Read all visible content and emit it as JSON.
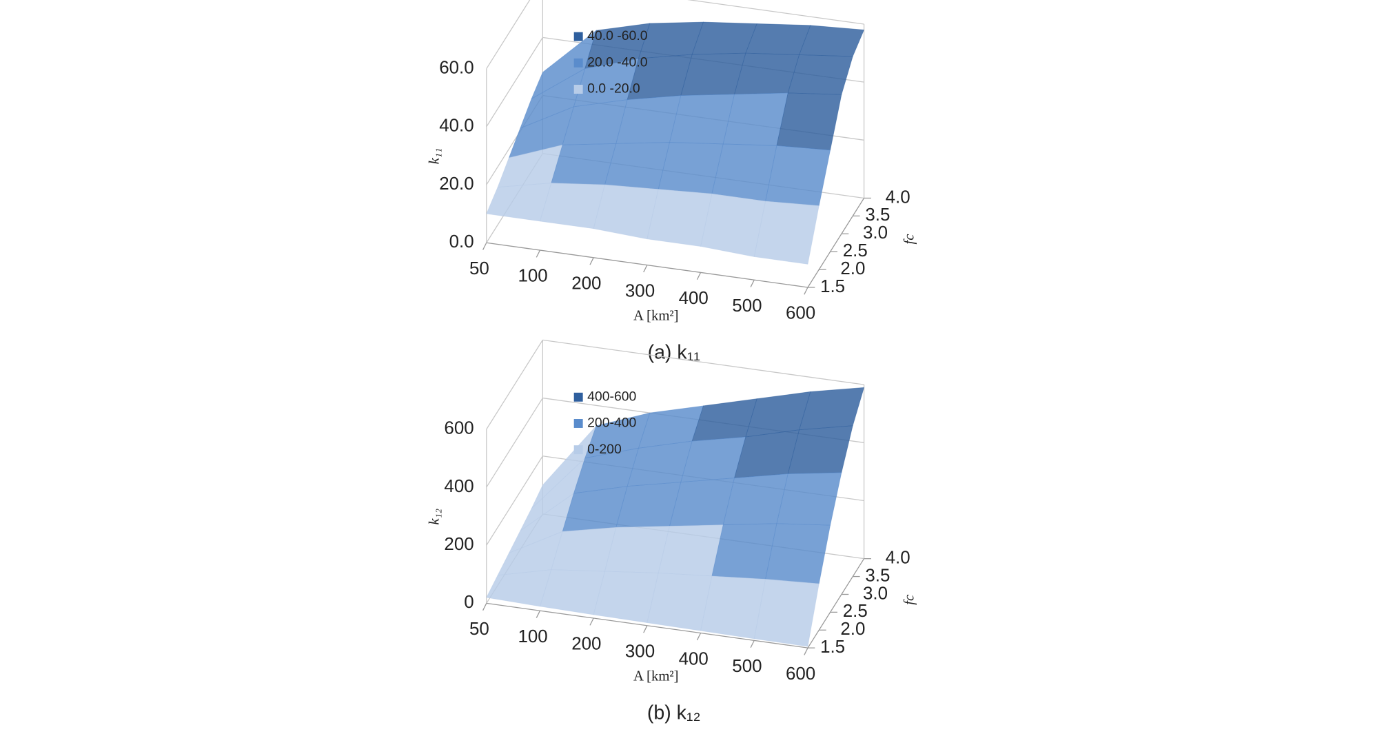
{
  "chart_data": [
    {
      "type": "surface",
      "caption": "(a) k₁₁",
      "zlabel": "k₁₁",
      "xlabel": "A [km²]",
      "ylabel": "fc",
      "categories": [
        "50",
        "100",
        "200",
        "300",
        "400",
        "500",
        "600"
      ],
      "depth_categories": [
        "1.5",
        "2.0",
        "2.5",
        "3.0",
        "3.5",
        "4.0"
      ],
      "values": [
        [
          10,
          10,
          10,
          9,
          9,
          8,
          8
        ],
        [
          13,
          17,
          19,
          20,
          21,
          21,
          22
        ],
        [
          17,
          24,
          27,
          30,
          32,
          34,
          35
        ],
        [
          21,
          31,
          36,
          40,
          43,
          46,
          48
        ],
        [
          25,
          38,
          44,
          48,
          51,
          53,
          55
        ],
        [
          28,
          45,
          50,
          53,
          55,
          57,
          58
        ]
      ],
      "zlim": [
        0,
        60
      ],
      "zticks": [
        {
          "value": 0,
          "label": "0.0"
        },
        {
          "value": 20,
          "label": "20.0"
        },
        {
          "value": 40,
          "label": "40.0"
        },
        {
          "value": 60,
          "label": "60.0"
        }
      ],
      "bands": [
        {
          "name": "40.0 -60.0",
          "from": 40,
          "to": 60,
          "color": "#2f5f9e"
        },
        {
          "name": "20.0 -40.0",
          "from": 20,
          "to": 40,
          "color": "#5a8ccc"
        },
        {
          "name": "0.0 -20.0",
          "from": 0,
          "to": 20,
          "color": "#b7cce8"
        }
      ]
    },
    {
      "type": "surface",
      "caption": "(b) k₁₂",
      "zlabel": "k₁₂",
      "xlabel": "A [km²]",
      "ylabel": "fc",
      "categories": [
        "50",
        "100",
        "200",
        "300",
        "400",
        "500",
        "600"
      ],
      "depth_categories": [
        "1.5",
        "2.0",
        "2.5",
        "3.0",
        "3.5",
        "4.0"
      ],
      "values": [
        [
          20,
          15,
          12,
          10,
          8,
          6,
          5
        ],
        [
          35,
          80,
          100,
          120,
          135,
          150,
          160
        ],
        [
          50,
          150,
          190,
          220,
          250,
          280,
          300
        ],
        [
          65,
          220,
          270,
          310,
          350,
          390,
          420
        ],
        [
          80,
          280,
          340,
          390,
          430,
          480,
          520
        ],
        [
          100,
          330,
          400,
          450,
          500,
          550,
          590
        ]
      ],
      "zlim": [
        0,
        600
      ],
      "zticks": [
        0,
        200,
        400,
        600
      ],
      "bands": [
        {
          "name": "400-600",
          "from": 400,
          "to": 600,
          "color": "#2f5f9e"
        },
        {
          "name": "200-400",
          "from": 200,
          "to": 400,
          "color": "#5a8ccc"
        },
        {
          "name": "0-200",
          "from": 0,
          "to": 200,
          "color": "#b7cce8"
        }
      ]
    }
  ]
}
